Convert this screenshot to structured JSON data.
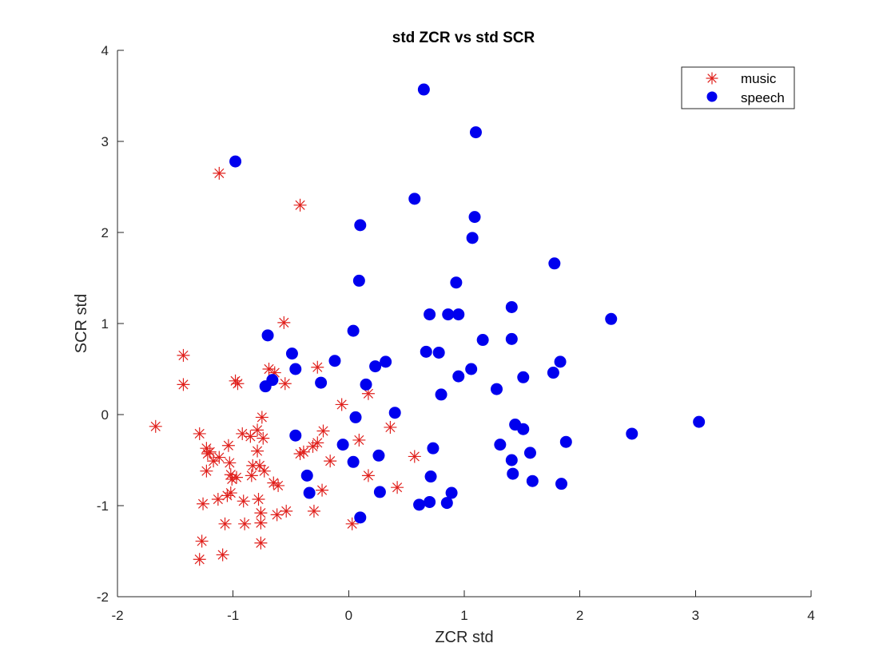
{
  "chart_data": {
    "type": "scatter",
    "title": "std ZCR vs std SCR",
    "xlabel": "ZCR std",
    "ylabel": "SCR std",
    "xlim": [
      -2,
      4
    ],
    "ylim": [
      -2,
      4
    ],
    "xticks": [
      "-2",
      "-1",
      "0",
      "1",
      "2",
      "3",
      "4"
    ],
    "yticks": [
      "-2",
      "-1",
      "0",
      "1",
      "2",
      "3",
      "4"
    ],
    "grid": false,
    "legend_position": "top-right",
    "series": [
      {
        "name": "music",
        "marker": "asterisk",
        "color": "#e0201c",
        "points": [
          [
            -1.67,
            -0.13
          ],
          [
            -1.43,
            0.65
          ],
          [
            -1.43,
            0.33
          ],
          [
            -1.12,
            2.65
          ],
          [
            -0.42,
            2.3
          ],
          [
            -0.56,
            1.01
          ],
          [
            -0.98,
            0.37
          ],
          [
            -0.96,
            0.34
          ],
          [
            -0.69,
            0.5
          ],
          [
            -0.64,
            0.46
          ],
          [
            -0.55,
            0.34
          ],
          [
            -0.27,
            0.52
          ],
          [
            -0.06,
            0.11
          ],
          [
            0.17,
            0.23
          ],
          [
            0.36,
            -0.14
          ],
          [
            -1.29,
            -0.21
          ],
          [
            -1.23,
            -0.37
          ],
          [
            -1.22,
            -0.43
          ],
          [
            -1.2,
            -0.41
          ],
          [
            -1.17,
            -0.51
          ],
          [
            -1.23,
            -0.62
          ],
          [
            -1.12,
            -0.47
          ],
          [
            -1.04,
            -0.34
          ],
          [
            -1.03,
            -0.53
          ],
          [
            -1.02,
            -0.66
          ],
          [
            -1.01,
            -0.71
          ],
          [
            -0.97,
            -0.69
          ],
          [
            -0.92,
            -0.21
          ],
          [
            -0.85,
            -0.24
          ],
          [
            -0.79,
            -0.17
          ],
          [
            -0.75,
            -0.03
          ],
          [
            -0.74,
            -0.26
          ],
          [
            -0.79,
            -0.4
          ],
          [
            -0.83,
            -0.56
          ],
          [
            -0.77,
            -0.56
          ],
          [
            -0.73,
            -0.62
          ],
          [
            -0.84,
            -0.67
          ],
          [
            -0.65,
            -0.75
          ],
          [
            -0.61,
            -0.78
          ],
          [
            -1.26,
            -0.98
          ],
          [
            -1.13,
            -0.93
          ],
          [
            -1.05,
            -0.89
          ],
          [
            -1.02,
            -0.86
          ],
          [
            -0.91,
            -0.95
          ],
          [
            -0.78,
            -0.93
          ],
          [
            -0.76,
            -1.08
          ],
          [
            -0.76,
            -1.19
          ],
          [
            -0.9,
            -1.2
          ],
          [
            -1.07,
            -1.2
          ],
          [
            -0.62,
            -1.1
          ],
          [
            -0.54,
            -1.06
          ],
          [
            -0.3,
            -1.06
          ],
          [
            -0.27,
            -0.31
          ],
          [
            -0.31,
            -0.35
          ],
          [
            -0.39,
            -0.41
          ],
          [
            -0.42,
            -0.43
          ],
          [
            -0.22,
            -0.18
          ],
          [
            -0.23,
            -0.83
          ],
          [
            -0.16,
            -0.51
          ],
          [
            0.09,
            -0.28
          ],
          [
            0.17,
            -0.67
          ],
          [
            0.42,
            -0.8
          ],
          [
            0.57,
            -0.46
          ],
          [
            0.03,
            -1.2
          ],
          [
            -1.27,
            -1.39
          ],
          [
            -1.29,
            -1.59
          ],
          [
            -1.09,
            -1.54
          ],
          [
            -0.76,
            -1.41
          ]
        ]
      },
      {
        "name": "speech",
        "marker": "filled-circle",
        "color": "#0000ee",
        "points": [
          [
            -0.98,
            2.78
          ],
          [
            0.65,
            3.57
          ],
          [
            1.1,
            3.1
          ],
          [
            0.57,
            2.37
          ],
          [
            0.1,
            2.08
          ],
          [
            1.09,
            2.17
          ],
          [
            1.07,
            1.94
          ],
          [
            0.09,
            1.47
          ],
          [
            0.93,
            1.45
          ],
          [
            1.78,
            1.66
          ],
          [
            2.27,
            1.05
          ],
          [
            1.41,
            1.18
          ],
          [
            0.7,
            1.1
          ],
          [
            0.86,
            1.1
          ],
          [
            0.95,
            1.1
          ],
          [
            0.04,
            0.92
          ],
          [
            1.16,
            0.82
          ],
          [
            1.41,
            0.83
          ],
          [
            -0.7,
            0.87
          ],
          [
            -0.49,
            0.67
          ],
          [
            -0.46,
            0.5
          ],
          [
            -0.12,
            0.59
          ],
          [
            0.32,
            0.58
          ],
          [
            0.23,
            0.53
          ],
          [
            0.67,
            0.69
          ],
          [
            0.78,
            0.68
          ],
          [
            1.06,
            0.5
          ],
          [
            0.95,
            0.42
          ],
          [
            1.77,
            0.46
          ],
          [
            1.83,
            0.58
          ],
          [
            1.51,
            0.41
          ],
          [
            1.28,
            0.28
          ],
          [
            0.8,
            0.22
          ],
          [
            0.15,
            0.33
          ],
          [
            -0.66,
            0.38
          ],
          [
            -0.72,
            0.31
          ],
          [
            -0.24,
            0.35
          ],
          [
            0.06,
            -0.03
          ],
          [
            0.4,
            0.02
          ],
          [
            1.44,
            -0.11
          ],
          [
            1.51,
            -0.16
          ],
          [
            1.88,
            -0.3
          ],
          [
            2.45,
            -0.21
          ],
          [
            3.03,
            -0.08
          ],
          [
            -0.46,
            -0.23
          ],
          [
            -0.05,
            -0.33
          ],
          [
            0.04,
            -0.52
          ],
          [
            0.26,
            -0.45
          ],
          [
            0.73,
            -0.37
          ],
          [
            1.31,
            -0.33
          ],
          [
            1.41,
            -0.5
          ],
          [
            1.57,
            -0.42
          ],
          [
            1.42,
            -0.65
          ],
          [
            1.59,
            -0.73
          ],
          [
            1.84,
            -0.76
          ],
          [
            -0.36,
            -0.67
          ],
          [
            -0.34,
            -0.86
          ],
          [
            0.27,
            -0.85
          ],
          [
            0.71,
            -0.68
          ],
          [
            0.89,
            -0.86
          ],
          [
            0.85,
            -0.97
          ],
          [
            0.7,
            -0.96
          ],
          [
            0.61,
            -0.99
          ],
          [
            0.1,
            -1.13
          ]
        ]
      }
    ]
  }
}
